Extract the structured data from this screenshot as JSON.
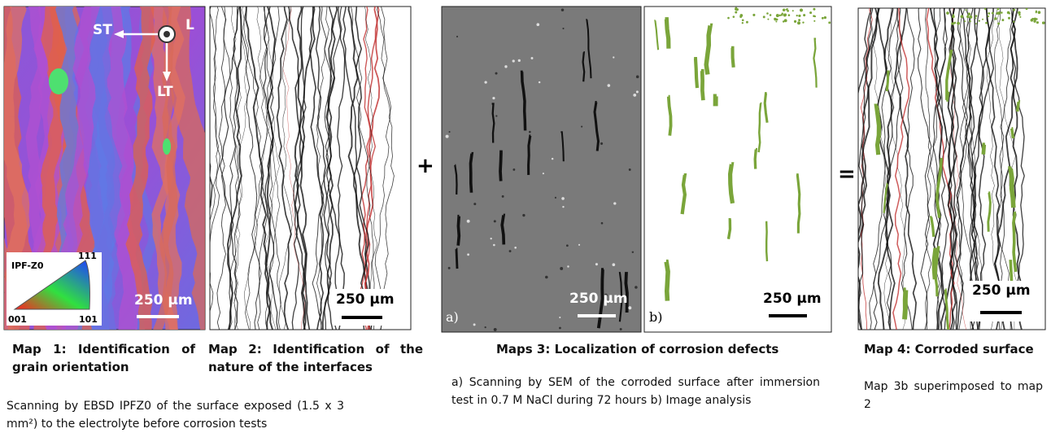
{
  "panels": {
    "map1": {
      "axis_st": "ST",
      "axis_l": "L",
      "axis_lt": "LT",
      "legend_title": "IPF-Z0",
      "legend_111": "111",
      "legend_001": "001",
      "legend_101": "101",
      "scale": "250 µm"
    },
    "map2": {
      "scale": "250 µm"
    },
    "plus": "+",
    "map3a": {
      "scale": "250 µm",
      "label": "a)"
    },
    "map3b": {
      "scale": "250 µm",
      "label": "b)"
    },
    "equals": "=",
    "map4": {
      "scale": "250 µm"
    }
  },
  "captions": {
    "map1": "Map 1: Identification of grain orientation",
    "map2": "Map 2: Identification of the nature of the interfaces",
    "map3": "Maps 3: Localization of corrosion defects",
    "map4": "Map 4: Corroded surface"
  },
  "descriptions": {
    "map1": "Scanning by EBSD IPFZ0 of the surface exposed (1.5 x 3 mm²) to the electrolyte before corrosion tests",
    "map3": "a) Scanning by SEM of the corroded surface after immersion test in 0.7 M NaCl during 72 hours b) Image analysis",
    "map4": "Map 3b superimposed to map 2"
  }
}
